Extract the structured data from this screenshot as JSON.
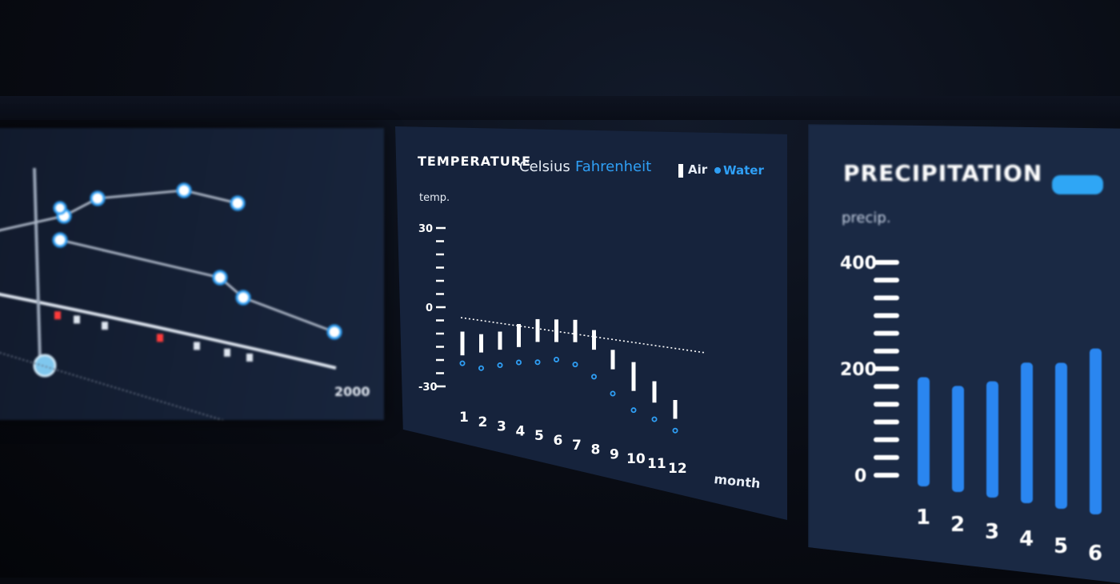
{
  "temperature_panel": {
    "title": "TEMPERATURE",
    "unit_celsius": "Celsius",
    "unit_fahrenheit": "Fahrenheit",
    "legend_air": "Air",
    "legend_water": "Water",
    "y_axis_label": "temp.",
    "x_axis_label": "month"
  },
  "precipitation_panel": {
    "title": "PRECIPITATION",
    "y_axis_label": "precip."
  },
  "left_panel": {
    "x_end_label": "2000"
  },
  "colors": {
    "panel_bg": "#16233c",
    "accent_blue": "#2f9ff5",
    "white": "#ffffff"
  },
  "chart_data": [
    {
      "type": "bar",
      "title": "TEMPERATURE",
      "ylabel": "temp.",
      "xlabel": "month",
      "ylim": [
        -30,
        30
      ],
      "yticks": [
        "30",
        "0",
        "-30"
      ],
      "categories": [
        "1",
        "2",
        "3",
        "4",
        "5",
        "6",
        "7",
        "8",
        "9",
        "10",
        "11",
        "12"
      ],
      "series": [
        {
          "name": "Air",
          "kind": "range-bar",
          "low": [
            -14,
            -12,
            -10,
            -8,
            -5,
            -4,
            -3,
            -5,
            -12,
            -20,
            -24,
            -30
          ],
          "high": [
            -5,
            -5,
            -3,
            1,
            4,
            5,
            6,
            3,
            -4,
            -8,
            -15,
            -22
          ]
        },
        {
          "name": "Water",
          "kind": "point",
          "values": [
            -17,
            -18,
            -16,
            -14,
            -13,
            -11,
            -12,
            -16,
            -22,
            -28,
            -31,
            -35
          ]
        }
      ]
    },
    {
      "type": "bar",
      "title": "PRECIPITATION",
      "ylabel": "precip.",
      "ytick_values": [
        0,
        200,
        400
      ],
      "categories": [
        "1",
        "2",
        "3",
        "4",
        "5",
        "6"
      ],
      "values": [
        210,
        200,
        215,
        255,
        260,
        290
      ]
    },
    {
      "type": "line",
      "x_end_label": "2000",
      "series": [
        {
          "values": [
            0.55,
            0.7,
            0.62,
            0.78,
            0.74
          ]
        },
        {
          "values": [
            0.62,
            0.48,
            0.3,
            0.22,
            0.12
          ]
        }
      ]
    }
  ]
}
